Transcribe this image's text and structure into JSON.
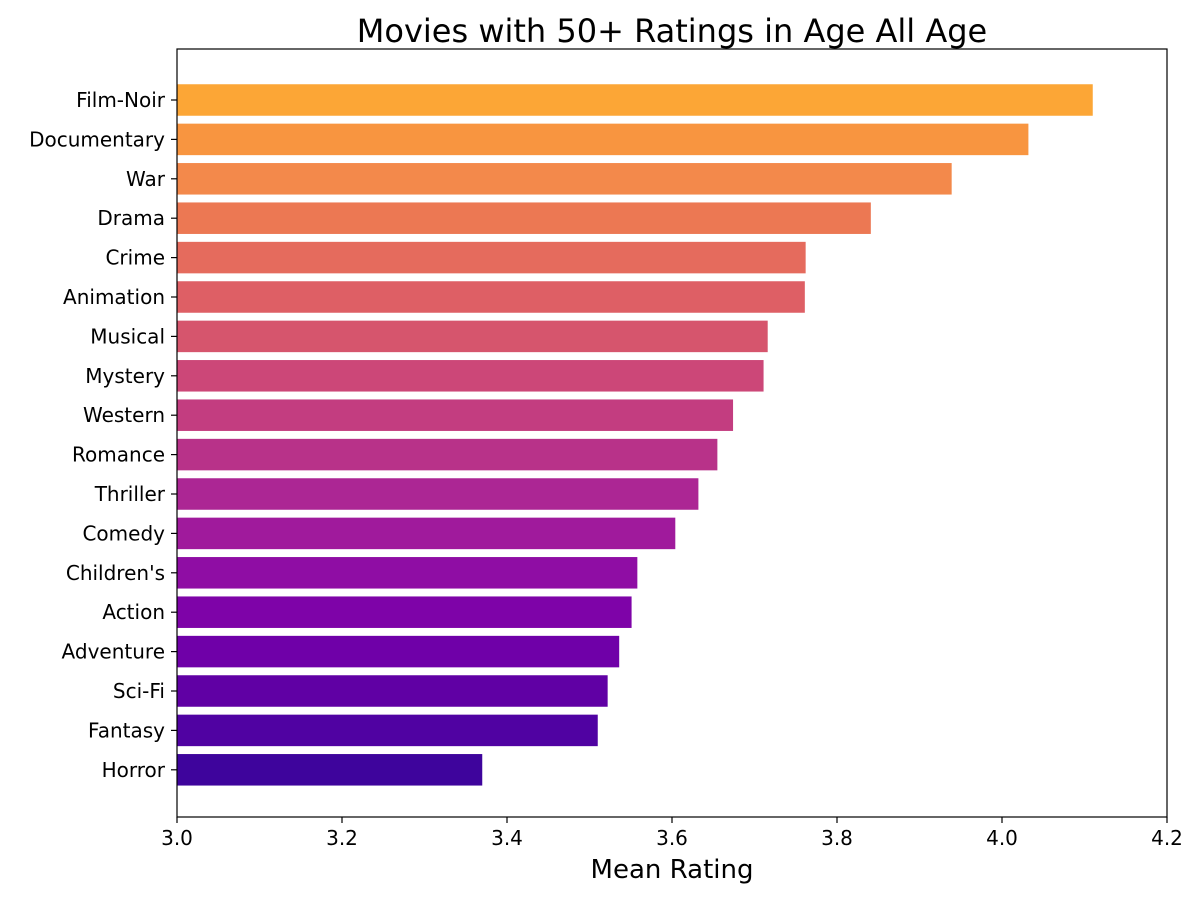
{
  "chart_data": {
    "type": "bar",
    "orientation": "horizontal",
    "title": "Movies with 50+ Ratings in Age All Age",
    "xlabel": "Mean Rating",
    "ylabel": "",
    "xlim": [
      3.0,
      4.2
    ],
    "xticks": [
      "3.0",
      "3.2",
      "3.4",
      "3.6",
      "3.8",
      "4.0",
      "4.2"
    ],
    "xtick_values": [
      3.0,
      3.2,
      3.4,
      3.6,
      3.8,
      4.0,
      4.2
    ],
    "grid": false,
    "legend": "none",
    "categories": [
      "Film-Noir",
      "Documentary",
      "War",
      "Drama",
      "Crime",
      "Animation",
      "Musical",
      "Mystery",
      "Western",
      "Romance",
      "Thriller",
      "Comedy",
      "Children's",
      "Action",
      "Adventure",
      "Sci-Fi",
      "Fantasy",
      "Horror"
    ],
    "values": [
      4.11,
      4.032,
      3.939,
      3.841,
      3.762,
      3.761,
      3.716,
      3.711,
      3.674,
      3.655,
      3.632,
      3.604,
      3.558,
      3.551,
      3.536,
      3.522,
      3.51,
      3.37
    ],
    "colors": [
      "#FCA636",
      "#F89540",
      "#F3894B",
      "#EC7853",
      "#E56B5D",
      "#DE5F65",
      "#D6556D",
      "#CC4778",
      "#C33D80",
      "#B83289",
      "#AC2694",
      "#A01A9C",
      "#8F0DA4",
      "#7E03A8",
      "#6F00A8",
      "#6000A4",
      "#5002A2",
      "#3E049C"
    ]
  }
}
